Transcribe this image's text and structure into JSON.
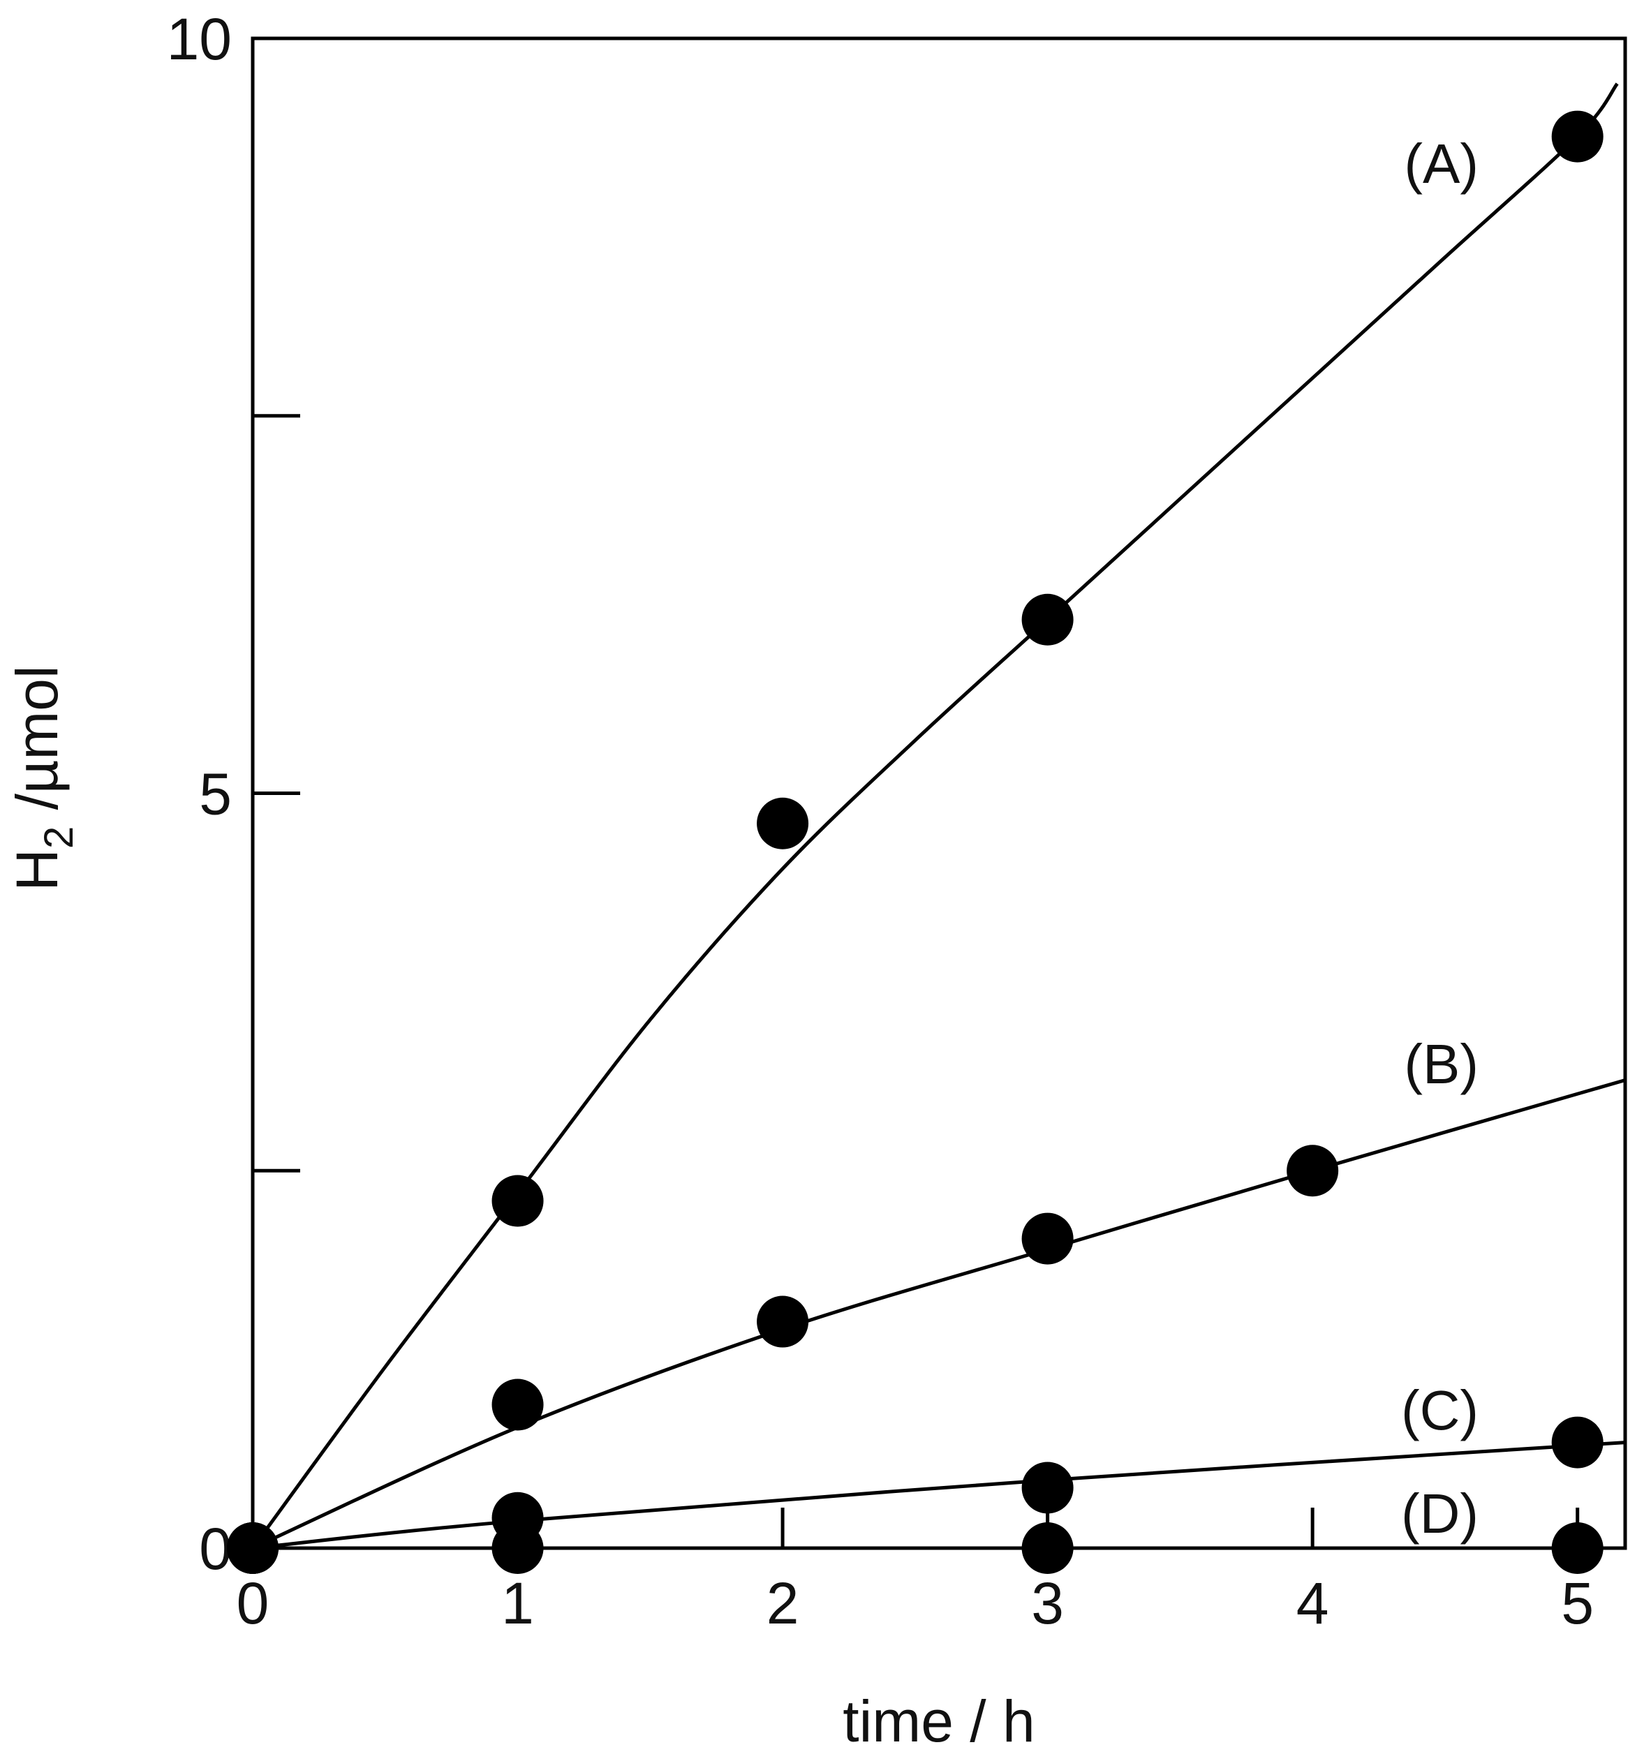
{
  "chart_data": {
    "type": "scatter",
    "title": "",
    "xlabel": "time / h",
    "ylabel": {
      "main": "H",
      "sub": "2",
      "rest": " /µmol"
    },
    "xlim": [
      0,
      5.18
    ],
    "ylim": [
      0,
      10
    ],
    "x_ticks": [
      0,
      1,
      2,
      3,
      4,
      5
    ],
    "x_tick_labels": [
      "0",
      "1",
      "2",
      "3",
      "4",
      "5"
    ],
    "y_ticks": [
      0,
      2.5,
      5,
      7.5,
      10
    ],
    "y_tick_labels": [
      "0",
      "",
      "5",
      "",
      "10"
    ],
    "grid": false,
    "legend": "none",
    "marker": "filled-circle",
    "color": "#000000",
    "series": [
      {
        "name": "(A)",
        "x": [
          0,
          1,
          2,
          3,
          5
        ],
        "y": [
          0,
          2.3,
          4.8,
          6.15,
          9.35
        ],
        "curve_x": [
          0,
          0.5,
          1,
          1.5,
          2,
          2.5,
          3,
          3.5,
          4,
          4.5,
          5,
          5.15
        ],
        "curve_y": [
          0,
          1.2,
          2.35,
          3.5,
          4.5,
          5.35,
          6.15,
          6.95,
          7.75,
          8.55,
          9.35,
          9.7
        ]
      },
      {
        "name": "(B)",
        "x": [
          0,
          1,
          2,
          3,
          4,
          5
        ],
        "y": [
          0,
          0.95,
          1.5,
          2.05,
          2.5,
          null
        ],
        "curve_x": [
          0,
          1,
          2,
          3,
          4,
          5.18
        ],
        "curve_y": [
          0,
          0.8,
          1.45,
          1.98,
          2.5,
          3.1
        ]
      },
      {
        "name": "(C)",
        "x": [
          0,
          1,
          3,
          5
        ],
        "y": [
          0,
          0.2,
          0.4,
          0.7
        ],
        "curve_x": [
          0,
          1,
          3,
          5.18
        ],
        "curve_y": [
          0,
          0.18,
          0.45,
          0.7
        ]
      },
      {
        "name": "(D)",
        "x": [
          0,
          1,
          3,
          5
        ],
        "y": [
          0,
          0,
          0,
          0
        ],
        "curve_x": [
          0,
          5.18
        ],
        "curve_y": [
          0,
          0
        ]
      }
    ]
  }
}
